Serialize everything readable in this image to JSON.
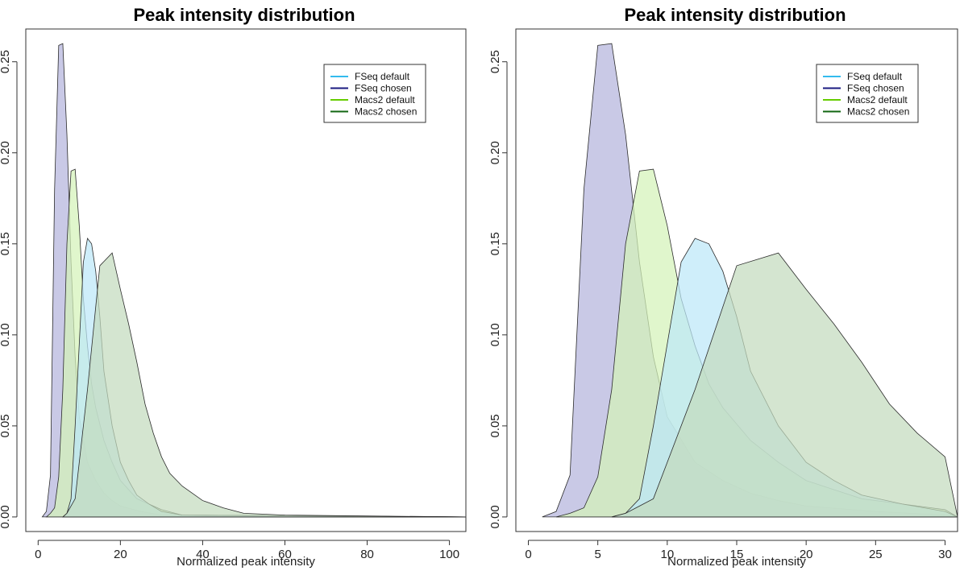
{
  "chart_data": [
    {
      "type": "area",
      "title": "Peak intensity distribution",
      "xlabel": "Normalized peak intensity",
      "ylabel": "",
      "xlim": [
        -3,
        104
      ],
      "ylim": [
        -0.008,
        0.268
      ],
      "xticks": [
        0,
        20,
        40,
        60,
        80,
        100
      ],
      "yticks": [
        0.0,
        0.05,
        0.1,
        0.15,
        0.2,
        0.25
      ],
      "xtick_labels": [
        "0",
        "20",
        "40",
        "60",
        "80",
        "100"
      ],
      "ytick_labels": [
        "0.00",
        "0.05",
        "0.10",
        "0.15",
        "0.20",
        "0.25"
      ],
      "legend_position": "top-right",
      "grid": false,
      "series": [
        {
          "name": "FSeq chosen",
          "color": "#1a1a80",
          "fill": "#b4b4dc",
          "x": [
            1,
            2,
            3,
            4,
            5,
            6,
            7,
            8,
            9,
            10,
            12,
            14,
            16,
            18,
            20,
            25,
            30,
            104
          ],
          "y": [
            0.0,
            0.003,
            0.023,
            0.18,
            0.259,
            0.26,
            0.21,
            0.14,
            0.088,
            0.055,
            0.03,
            0.02,
            0.013,
            0.009,
            0.006,
            0.003,
            0.001,
            0.0
          ]
        },
        {
          "name": "Macs2 default",
          "color": "#66cc00",
          "fill": "#d4f2b8",
          "x": [
            2,
            3,
            4,
            5,
            6,
            7,
            8,
            9,
            10,
            11,
            12,
            13,
            14,
            16,
            18,
            20,
            24,
            30,
            35,
            104
          ],
          "y": [
            0.0,
            0.002,
            0.005,
            0.022,
            0.07,
            0.15,
            0.19,
            0.191,
            0.16,
            0.12,
            0.094,
            0.073,
            0.06,
            0.042,
            0.03,
            0.02,
            0.01,
            0.004,
            0.001,
            0.0
          ]
        },
        {
          "name": "FSeq default",
          "color": "#33bbee",
          "fill": "#bde8f8",
          "x": [
            6,
            7,
            8,
            9,
            10,
            11,
            12,
            13,
            14,
            15,
            16,
            18,
            20,
            22,
            24,
            27,
            30,
            35,
            104
          ],
          "y": [
            0.0,
            0.002,
            0.01,
            0.05,
            0.095,
            0.14,
            0.153,
            0.15,
            0.135,
            0.11,
            0.08,
            0.05,
            0.03,
            0.02,
            0.012,
            0.007,
            0.003,
            0.001,
            0.0
          ]
        },
        {
          "name": "Macs2 chosen",
          "color": "#116611",
          "fill": "#c4dbbe",
          "x": [
            6,
            7,
            8,
            9,
            10,
            12,
            15,
            18,
            20,
            22,
            24,
            26,
            28,
            30,
            32,
            35,
            40,
            45,
            50,
            60,
            104
          ],
          "y": [
            0.0,
            0.002,
            0.006,
            0.01,
            0.03,
            0.07,
            0.138,
            0.145,
            0.125,
            0.106,
            0.085,
            0.062,
            0.046,
            0.033,
            0.024,
            0.017,
            0.009,
            0.005,
            0.002,
            0.001,
            0.0
          ]
        }
      ]
    },
    {
      "type": "area",
      "title": "Peak intensity distribution",
      "xlabel": "Normalized peak intensity",
      "ylabel": "",
      "xlim": [
        -0.9,
        30.9
      ],
      "ylim": [
        -0.008,
        0.268
      ],
      "xticks": [
        0,
        5,
        10,
        15,
        20,
        25,
        30
      ],
      "yticks": [
        0.0,
        0.05,
        0.1,
        0.15,
        0.2,
        0.25
      ],
      "xtick_labels": [
        "0",
        "5",
        "10",
        "15",
        "20",
        "25",
        "30"
      ],
      "ytick_labels": [
        "0.00",
        "0.05",
        "0.10",
        "0.15",
        "0.20",
        "0.25"
      ],
      "legend_position": "top-right",
      "grid": false,
      "series": [
        {
          "name": "FSeq chosen",
          "color": "#1a1a80",
          "fill": "#b4b4dc",
          "x": [
            1,
            2,
            3,
            4,
            5,
            6,
            7,
            8,
            9,
            10,
            12,
            14,
            16,
            18,
            20,
            25,
            30,
            30.9
          ],
          "y": [
            0.0,
            0.003,
            0.023,
            0.18,
            0.259,
            0.26,
            0.21,
            0.14,
            0.088,
            0.055,
            0.03,
            0.02,
            0.013,
            0.009,
            0.006,
            0.003,
            0.001,
            0.0
          ]
        },
        {
          "name": "Macs2 default",
          "color": "#66cc00",
          "fill": "#d4f2b8",
          "x": [
            2,
            3,
            4,
            5,
            6,
            7,
            8,
            9,
            10,
            11,
            12,
            13,
            14,
            16,
            18,
            20,
            24,
            30,
            30.9
          ],
          "y": [
            0.0,
            0.002,
            0.005,
            0.022,
            0.07,
            0.15,
            0.19,
            0.191,
            0.16,
            0.12,
            0.094,
            0.073,
            0.06,
            0.042,
            0.03,
            0.02,
            0.01,
            0.004,
            0.0
          ]
        },
        {
          "name": "FSeq default",
          "color": "#33bbee",
          "fill": "#bde8f8",
          "x": [
            6,
            7,
            8,
            9,
            10,
            11,
            12,
            13,
            14,
            15,
            16,
            18,
            20,
            22,
            24,
            27,
            30,
            30.9
          ],
          "y": [
            0.0,
            0.002,
            0.01,
            0.05,
            0.095,
            0.14,
            0.153,
            0.15,
            0.135,
            0.11,
            0.08,
            0.05,
            0.03,
            0.02,
            0.012,
            0.007,
            0.003,
            0.0
          ]
        },
        {
          "name": "Macs2 chosen",
          "color": "#116611",
          "fill": "#c4dbbe",
          "x": [
            6,
            7,
            8,
            9,
            10,
            12,
            15,
            18,
            20,
            22,
            24,
            26,
            28,
            30,
            30.9
          ],
          "y": [
            0.0,
            0.002,
            0.006,
            0.01,
            0.03,
            0.07,
            0.138,
            0.145,
            0.125,
            0.106,
            0.085,
            0.062,
            0.046,
            0.033,
            0.0
          ]
        }
      ]
    }
  ]
}
